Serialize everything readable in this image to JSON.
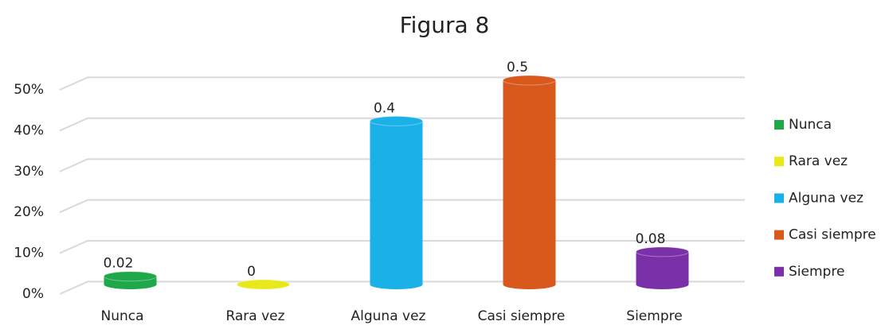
{
  "chart_data": {
    "type": "cylinder-bar",
    "title": "Figura 8",
    "categories": [
      "Nunca",
      "Rara vez",
      "Alguna vez",
      "Casi siempre",
      "Siempre"
    ],
    "values": [
      0.02,
      0,
      0.4,
      0.5,
      0.08
    ],
    "colors": [
      "#1fa84a",
      "#e8e81a",
      "#1ab0e8",
      "#d9581c",
      "#7a30a8"
    ],
    "ylim": [
      0,
      0.5
    ],
    "yticks": [
      {
        "value": 0,
        "label": "0%"
      },
      {
        "value": 0.1,
        "label": "10%"
      },
      {
        "value": 0.2,
        "label": "20%"
      },
      {
        "value": 0.3,
        "label": "30%"
      },
      {
        "value": 0.4,
        "label": "40%"
      },
      {
        "value": 0.5,
        "label": "50%"
      }
    ],
    "grid": true,
    "legend": "right"
  }
}
